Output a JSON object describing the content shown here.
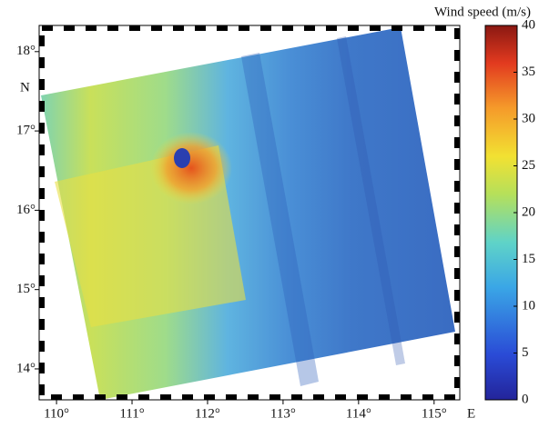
{
  "map": {
    "xlim": [
      109.77,
      115.34
    ],
    "ylim": [
      13.61,
      18.33
    ],
    "xticks": [
      {
        "value": 110,
        "label": "110°"
      },
      {
        "value": 111,
        "label": "111°"
      },
      {
        "value": 112,
        "label": "112°"
      },
      {
        "value": 113,
        "label": "113°"
      },
      {
        "value": 114,
        "label": "114°"
      },
      {
        "value": 115,
        "label": "115°"
      }
    ],
    "yticks": [
      {
        "value": 14,
        "label": "14°"
      },
      {
        "value": 15,
        "label": "15°"
      },
      {
        "value": 16,
        "label": "16°"
      },
      {
        "value": 17,
        "label": "17°"
      },
      {
        "value": 18,
        "label": "18°"
      }
    ],
    "x_hemisphere": "E",
    "y_hemisphere": "N"
  },
  "colorbar": {
    "title": "Wind speed (m/s)",
    "lim": [
      0,
      40
    ],
    "ticks": [
      0,
      5,
      10,
      15,
      20,
      25,
      30,
      35,
      40
    ]
  }
}
